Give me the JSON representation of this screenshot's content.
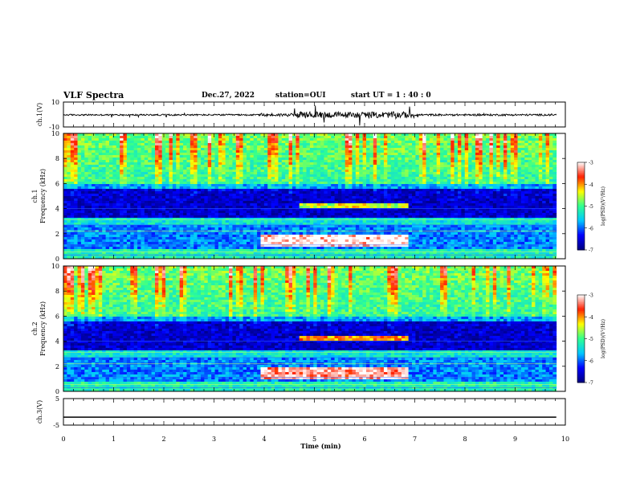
{
  "header": {
    "title": "VLF Spectra",
    "date": "Dec.27, 2022",
    "station": "station=OUI",
    "start": "start  UT =   1 : 40 : 0"
  },
  "chart_data": [
    {
      "type": "line",
      "panel": "ch1-waveform",
      "ylabel": "ch.1(V)",
      "yticks": [
        "10",
        "-10"
      ],
      "ylim": [
        -10,
        10
      ],
      "xlim": [
        0,
        10
      ],
      "x_end": 9.82,
      "baseline": -0.3,
      "noise_amplitude": [
        {
          "x_from": 0,
          "x_to": 3.9,
          "amp": 1.2
        },
        {
          "x_from": 3.9,
          "x_to": 4.6,
          "amp": 2.5
        },
        {
          "x_from": 4.6,
          "x_to": 7.0,
          "amp": 5.0
        },
        {
          "x_from": 7.0,
          "x_to": 9.82,
          "amp": 1.5
        }
      ]
    },
    {
      "type": "heatmap",
      "panel": "ch1-spectrogram",
      "ylabel": "ch.1 Frequency (kHz)",
      "yticks": [
        "0",
        "2",
        "4",
        "6",
        "8",
        "10"
      ],
      "ylim": [
        0,
        10
      ],
      "xlim": [
        0,
        10
      ],
      "x_end": 9.82,
      "colorbar": {
        "label": "log(PSD)(V²/Hz)",
        "ticks": [
          "-3",
          "-4",
          "-5",
          "-6",
          "-7"
        ],
        "range": [
          -7,
          -3
        ],
        "colors": [
          "#00007f",
          "#0000ff",
          "#00c8ff",
          "#30ff90",
          "#ffff00",
          "#ff2000",
          "#ffffff"
        ]
      },
      "features": [
        {
          "desc": "enhanced emission 1-2 kHz",
          "x": [
            3.9,
            6.9
          ],
          "f": [
            1.0,
            2.0
          ],
          "level": -3.0
        },
        {
          "desc": "emission band near 4.3 kHz",
          "x": [
            4.7,
            6.9
          ],
          "f": [
            4.1,
            4.5
          ],
          "level": -4.5
        },
        {
          "desc": "low-frequency band",
          "x": [
            0,
            9.82
          ],
          "f": [
            0.8,
            2.6
          ],
          "level": -5.5
        },
        {
          "desc": "quiet band",
          "x": [
            0,
            9.82
          ],
          "f": [
            3.5,
            5.5
          ],
          "level": -6.5
        },
        {
          "desc": "impulsive spheric upper band",
          "x": [
            0,
            9.82
          ],
          "f": [
            6.0,
            10.0
          ],
          "level": -4.8
        }
      ]
    },
    {
      "type": "heatmap",
      "panel": "ch2-spectrogram",
      "ylabel": "ch.2 Frequency (kHz)",
      "yticks": [
        "0",
        "2",
        "4",
        "6",
        "8",
        "10"
      ],
      "ylim": [
        0,
        10
      ],
      "xlim": [
        0,
        10
      ],
      "x_end": 9.82,
      "colorbar": {
        "label": "log(PSD)(V²/Hz)",
        "ticks": [
          "-3",
          "-4",
          "-5",
          "-6",
          "-7"
        ],
        "range": [
          -7,
          -3
        ],
        "colors": [
          "#00007f",
          "#0000ff",
          "#00c8ff",
          "#30ff90",
          "#ffff00",
          "#ff2000",
          "#ffffff"
        ]
      },
      "features": [
        {
          "desc": "enhanced emission 1-2 kHz",
          "x": [
            3.9,
            6.9
          ],
          "f": [
            1.0,
            2.0
          ],
          "level": -3.2
        },
        {
          "desc": "emission band near 4.3 kHz",
          "x": [
            4.7,
            6.9
          ],
          "f": [
            4.1,
            4.5
          ],
          "level": -4.0
        },
        {
          "desc": "low-frequency band",
          "x": [
            0,
            9.82
          ],
          "f": [
            1.0,
            3.0
          ],
          "level": -5.3
        },
        {
          "desc": "quiet band",
          "x": [
            0,
            9.82
          ],
          "f": [
            3.2,
            5.0
          ],
          "level": -6.3
        },
        {
          "desc": "impulsive spheric upper band",
          "x": [
            0,
            9.82
          ],
          "f": [
            5.5,
            10.0
          ],
          "level": -4.9
        }
      ]
    },
    {
      "type": "line",
      "panel": "ch3-waveform",
      "ylabel": "ch.3(V)",
      "yticks": [
        "5",
        "-5"
      ],
      "ylim": [
        -5,
        5
      ],
      "xlim": [
        0,
        10
      ],
      "x_end": 9.82,
      "baseline": -2.0
    }
  ],
  "xaxis": {
    "label": "Time (min)",
    "ticks": [
      "0",
      "1",
      "2",
      "3",
      "4",
      "5",
      "6",
      "7",
      "8",
      "9",
      "10"
    ]
  }
}
